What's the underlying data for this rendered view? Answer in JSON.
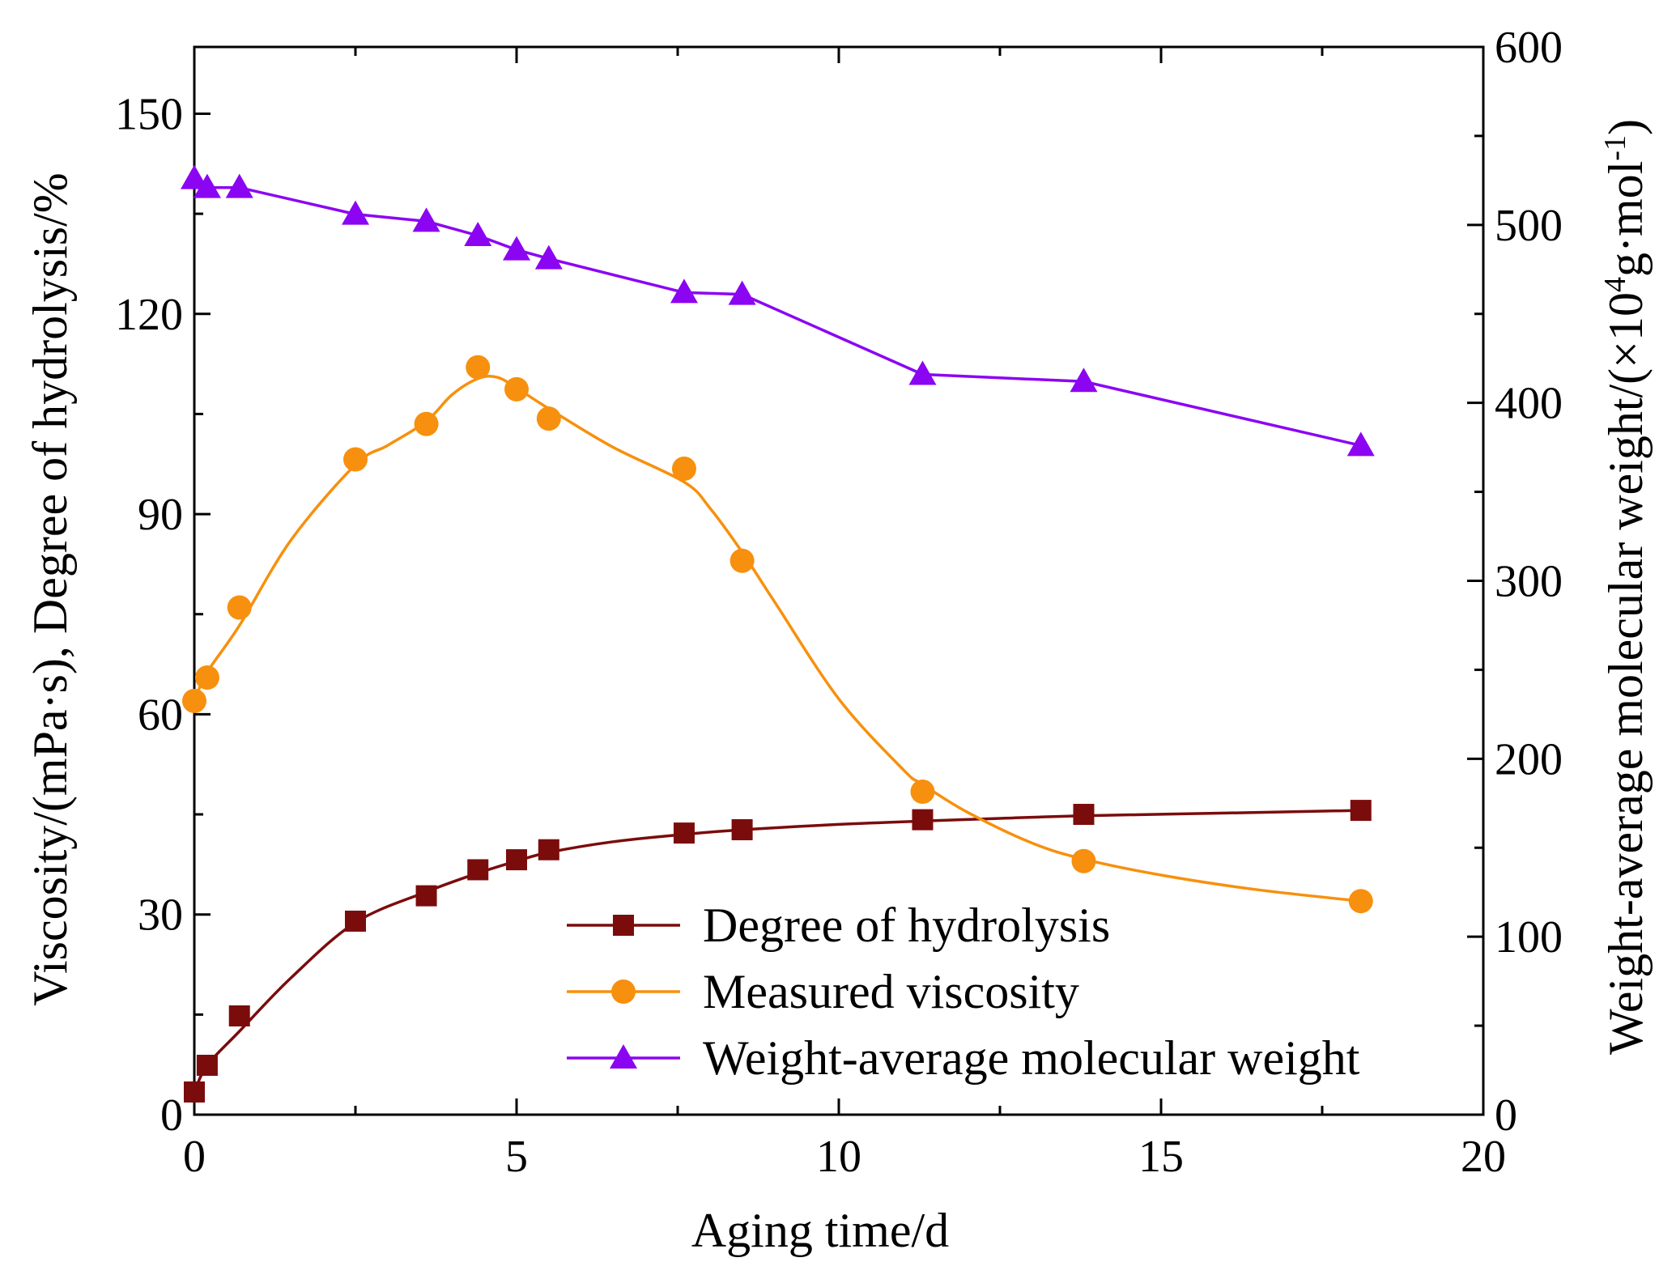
{
  "chart_data": {
    "type": "line",
    "title": "",
    "xlabel": "Aging time/d",
    "ylabel_left": "Viscosity/(mPa·s), Degree of hydrolysis/%",
    "ylabel_right": "Weight-average molecular weight/(×10⁴g·mol⁻¹)",
    "ylabel_right_parts": {
      "prefix": "Weight-average molecular weight/(×10",
      "exp1": "4",
      "mid": "g·mol",
      "exp2": "-1",
      "suffix": ")"
    },
    "xlim": [
      0,
      20
    ],
    "ylim_left": [
      0,
      160
    ],
    "ylim_right": [
      0,
      600
    ],
    "x_ticks": [
      0,
      5,
      10,
      15,
      20
    ],
    "x_tick_labels": [
      "0",
      "5",
      "10",
      "15",
      "20"
    ],
    "y_left_ticks": [
      0,
      30,
      60,
      90,
      120,
      150
    ],
    "y_left_tick_labels": [
      "0",
      "30",
      "60",
      "90",
      "120",
      "150"
    ],
    "y_right_ticks": [
      0,
      100,
      200,
      300,
      400,
      500,
      600
    ],
    "y_right_tick_labels": [
      "0",
      "100",
      "200",
      "300",
      "400",
      "500",
      "600"
    ],
    "legend_position": "bottom-right",
    "series": [
      {
        "name": "Degree of hydrolysis",
        "axis": "left",
        "marker": "square",
        "color": "#7b0c0c",
        "x": [
          0,
          0.2,
          0.7,
          2.5,
          3.6,
          4.4,
          5.0,
          5.5,
          7.6,
          8.5,
          11.3,
          13.8,
          18.1
        ],
        "values": [
          3.4,
          7.4,
          14.8,
          29.0,
          32.8,
          36.7,
          38.2,
          39.7,
          42.2,
          42.7,
          44.2,
          45.0,
          45.6
        ],
        "fit_x": [
          0,
          0.2,
          0.7,
          1.5,
          2.5,
          3.6,
          4.4,
          5.0,
          5.5,
          6.5,
          7.6,
          8.5,
          10,
          11.3,
          12.5,
          13.8,
          16,
          18.1
        ],
        "fit_values": [
          3.4,
          7.4,
          12.5,
          20.5,
          28.8,
          33.4,
          36.2,
          38.0,
          39.3,
          40.9,
          42.0,
          42.7,
          43.5,
          44.0,
          44.4,
          44.8,
          45.2,
          45.6
        ]
      },
      {
        "name": "Measured viscosity",
        "axis": "left",
        "marker": "circle",
        "color": "#f7900e",
        "x": [
          0,
          0.2,
          0.7,
          2.5,
          3.6,
          4.4,
          5.0,
          5.5,
          7.6,
          8.5,
          11.3,
          13.8,
          18.1
        ],
        "values": [
          62.0,
          65.5,
          76.0,
          98.2,
          103.5,
          112.0,
          108.7,
          104.3,
          96.8,
          83.0,
          48.4,
          38.0,
          32.0
        ],
        "fit_x": [
          0,
          0.2,
          0.7,
          1.5,
          2.5,
          3.0,
          3.6,
          4.0,
          4.4,
          4.7,
          5.0,
          5.5,
          6.5,
          7.6,
          8.0,
          8.5,
          9.0,
          10.0,
          11.0,
          11.3,
          12.0,
          13.0,
          13.8,
          15.0,
          16.5,
          18.1
        ],
        "fit_values": [
          62.0,
          66.3,
          73.3,
          86.1,
          97.4,
          100.3,
          103.9,
          107.9,
          110.3,
          110.5,
          108.9,
          105.8,
          100.0,
          94.8,
          90.9,
          84.3,
          76.9,
          62.3,
          51.7,
          49.5,
          45.3,
          40.7,
          38.3,
          35.9,
          33.7,
          32.0
        ]
      },
      {
        "name": "Weight-average molecular weight",
        "axis": "right",
        "marker": "triangle",
        "color": "#8b05f3",
        "x": [
          0,
          0.2,
          0.7,
          2.5,
          3.6,
          4.4,
          5.0,
          5.5,
          7.6,
          8.5,
          11.3,
          13.8,
          18.1
        ],
        "values": [
          526,
          521,
          521,
          506,
          502,
          494,
          486,
          481,
          462,
          461,
          416,
          412,
          376
        ]
      }
    ]
  }
}
